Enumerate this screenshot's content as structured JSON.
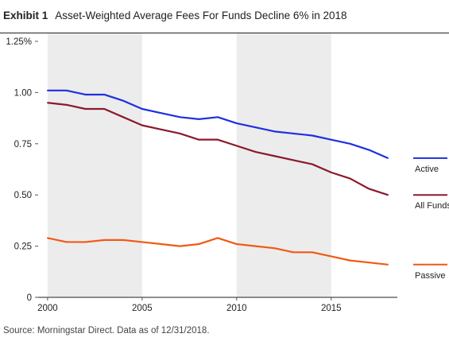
{
  "header": {
    "label": "Exhibit 1",
    "title": "Asset-Weighted Average Fees For Funds Decline 6% in 2018"
  },
  "source": "Source: Morningstar Direct. Data as of 12/31/2018.",
  "chart_data": {
    "type": "line",
    "title": "Asset-Weighted Average Fees For Funds Decline 6% in 2018",
    "xlabel": "",
    "ylabel": "",
    "x": [
      2000,
      2001,
      2002,
      2003,
      2004,
      2005,
      2006,
      2007,
      2008,
      2009,
      2010,
      2011,
      2012,
      2013,
      2014,
      2015,
      2016,
      2017,
      2018
    ],
    "xlim": [
      1999.5,
      2018.5
    ],
    "ylim": [
      0,
      1.25
    ],
    "yticks": [
      {
        "value": 0,
        "label": "0"
      },
      {
        "value": 0.25,
        "label": "0.25"
      },
      {
        "value": 0.5,
        "label": "0.50"
      },
      {
        "value": 0.75,
        "label": "0.75"
      },
      {
        "value": 1.0,
        "label": "1.00"
      },
      {
        "value": 1.25,
        "label": "1.25%"
      }
    ],
    "xticks": [
      2000,
      2005,
      2010,
      2015
    ],
    "shaded_bands": [
      [
        2000,
        2005
      ],
      [
        2010,
        2015
      ]
    ],
    "grid": false,
    "legend": "right, at line ends",
    "series": [
      {
        "name": "Active",
        "color": "#1f2fe0",
        "values": [
          1.01,
          1.01,
          0.99,
          0.99,
          0.96,
          0.92,
          0.9,
          0.88,
          0.87,
          0.88,
          0.85,
          0.83,
          0.81,
          0.8,
          0.79,
          0.77,
          0.75,
          0.72,
          0.68
        ]
      },
      {
        "name": "All Funds",
        "color": "#8b1a2b",
        "values": [
          0.95,
          0.94,
          0.92,
          0.92,
          0.88,
          0.84,
          0.82,
          0.8,
          0.77,
          0.77,
          0.74,
          0.71,
          0.69,
          0.67,
          0.65,
          0.61,
          0.58,
          0.53,
          0.5
        ]
      },
      {
        "name": "Passive",
        "color": "#f05a14",
        "values": [
          0.29,
          0.27,
          0.27,
          0.28,
          0.28,
          0.27,
          0.26,
          0.25,
          0.26,
          0.29,
          0.26,
          0.25,
          0.24,
          0.22,
          0.22,
          0.2,
          0.18,
          0.17,
          0.16
        ]
      }
    ]
  }
}
